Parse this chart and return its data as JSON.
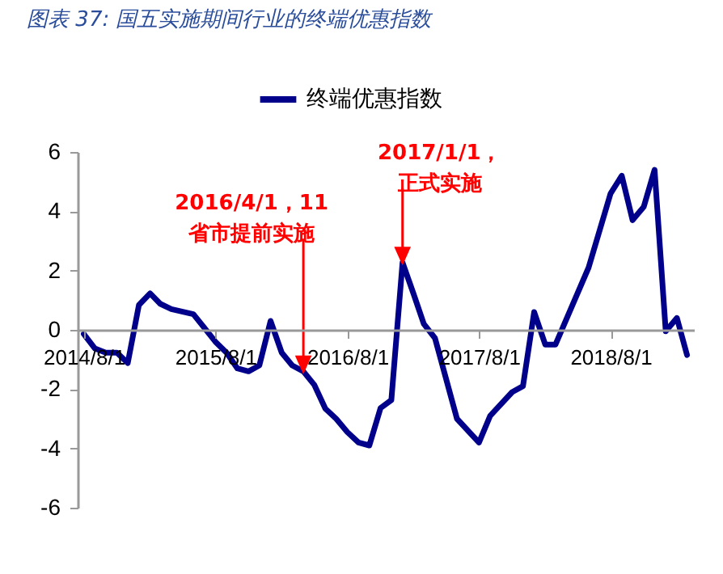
{
  "chart_data": {
    "type": "line",
    "title": "图表 37:  国五实施期间行业的终端优惠指数",
    "x": [
      "2014-08",
      "2014-09",
      "2014-10",
      "2014-11",
      "2014-12",
      "2015-01",
      "2015-02",
      "2015-03",
      "2015-04",
      "2015-06",
      "2015-08",
      "2015-09",
      "2015-10",
      "2015-11",
      "2015-12",
      "2016-01",
      "2016-02",
      "2016-03",
      "2016-04",
      "2016-05",
      "2016-06",
      "2016-07",
      "2016-08",
      "2016-09",
      "2016-10",
      "2016-11",
      "2016-12",
      "2017-01",
      "2017-02",
      "2017-03",
      "2017-04",
      "2017-06",
      "2017-08",
      "2017-09",
      "2017-11",
      "2017-12",
      "2018-01",
      "2018-02",
      "2018-03",
      "2018-06",
      "2018-08",
      "2018-09",
      "2018-10",
      "2018-11",
      "2018-12",
      "2019-01",
      "2019-02",
      "2019-03"
    ],
    "series": [
      {
        "name": "终端优惠指数",
        "color": "#00008b",
        "values": [
          -0.14,
          -0.63,
          -0.77,
          -0.77,
          -1.12,
          0.84,
          1.23,
          0.88,
          0.7,
          0.53,
          -0.4,
          -0.77,
          -1.3,
          -1.4,
          -1.2,
          0.3,
          -0.77,
          -1.2,
          -1.4,
          -1.85,
          -2.66,
          -3.0,
          -3.45,
          -3.8,
          -3.9,
          -2.64,
          -2.37,
          2.27,
          1.2,
          0.2,
          -0.28,
          -3.0,
          -3.8,
          -2.9,
          -2.1,
          -1.9,
          0.6,
          -0.5,
          -0.5,
          2.1,
          4.6,
          5.2,
          3.7,
          4.15,
          5.4,
          -0.05,
          0.4,
          -0.85
        ]
      }
    ],
    "xlim": [
      "2014-07-15",
      "2019-03-20"
    ],
    "xticks": [
      {
        "value": "2014-08-01",
        "label": "2014/8/1"
      },
      {
        "value": "2015-08-01",
        "label": "2015/8/1"
      },
      {
        "value": "2016-08-01",
        "label": "2016/8/1"
      },
      {
        "value": "2017-08-01",
        "label": "2017/8/1"
      },
      {
        "value": "2018-08-01",
        "label": "2018/8/1"
      }
    ],
    "ylim": [
      -6,
      6
    ],
    "yticks": [
      -6,
      -4,
      -2,
      0,
      2,
      4,
      6
    ],
    "annotations": [
      {
        "text": "2016/4/1，11省市提前实施",
        "x": "2016-04",
        "y": -1.4
      },
      {
        "text": "2017/1/1，正式实施",
        "x": "2017-01",
        "y": 2.27
      }
    ],
    "grid": false,
    "legend": "top",
    "marker": "none",
    "line_style": "solid"
  }
}
